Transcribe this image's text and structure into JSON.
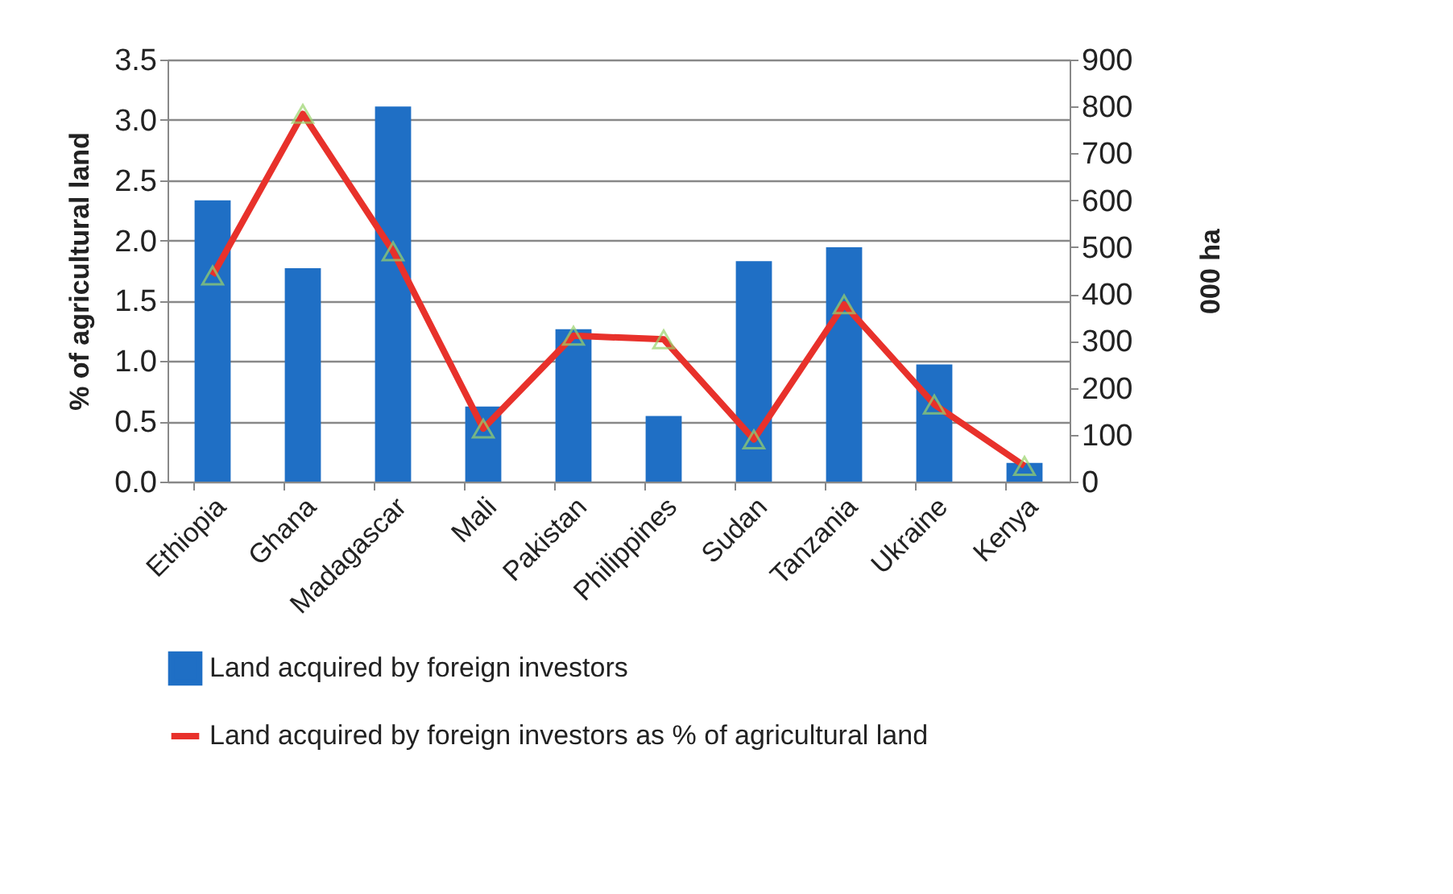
{
  "chart_data": {
    "type": "bar",
    "categories": [
      "Ethiopia",
      "Ghana",
      "Madagascar",
      "Mali",
      "Pakistan",
      "Philippines",
      "Sudan",
      "Tanzania",
      "Ukraine",
      "Kenya"
    ],
    "series": [
      {
        "name": "Land acquired by foreign investors",
        "axis": "y2",
        "color": "#1f6fc5",
        "values": [
          600,
          455,
          800,
          160,
          325,
          140,
          470,
          500,
          250,
          40
        ]
      },
      {
        "name": "Land acquired by foreign investors as % of agricultural land",
        "type": "line",
        "axis": "y",
        "color": "#e8312b",
        "marker": "triangle",
        "values": [
          1.71,
          3.05,
          1.91,
          0.44,
          1.21,
          1.18,
          0.35,
          1.47,
          0.64,
          0.13
        ]
      }
    ],
    "ylabel": "% of agricultural land",
    "y2label": "000 ha",
    "ylim": [
      0,
      3.5
    ],
    "yticks": [
      {
        "value": 0,
        "label": "0.0"
      },
      {
        "value": 0.5,
        "label": "0.5"
      },
      {
        "value": 1,
        "label": "1.0"
      },
      {
        "value": 1.5,
        "label": "1.5"
      },
      {
        "value": 2,
        "label": "2.0"
      },
      {
        "value": 2.5,
        "label": "2.5"
      },
      {
        "value": 3,
        "label": "3.0"
      },
      {
        "value": 3.5,
        "label": "3.5"
      }
    ],
    "y2lim": [
      0,
      900
    ],
    "y2ticks": [
      0,
      100,
      200,
      300,
      400,
      500,
      600,
      700,
      800,
      900
    ],
    "grid": "y",
    "legend": "bottom"
  }
}
